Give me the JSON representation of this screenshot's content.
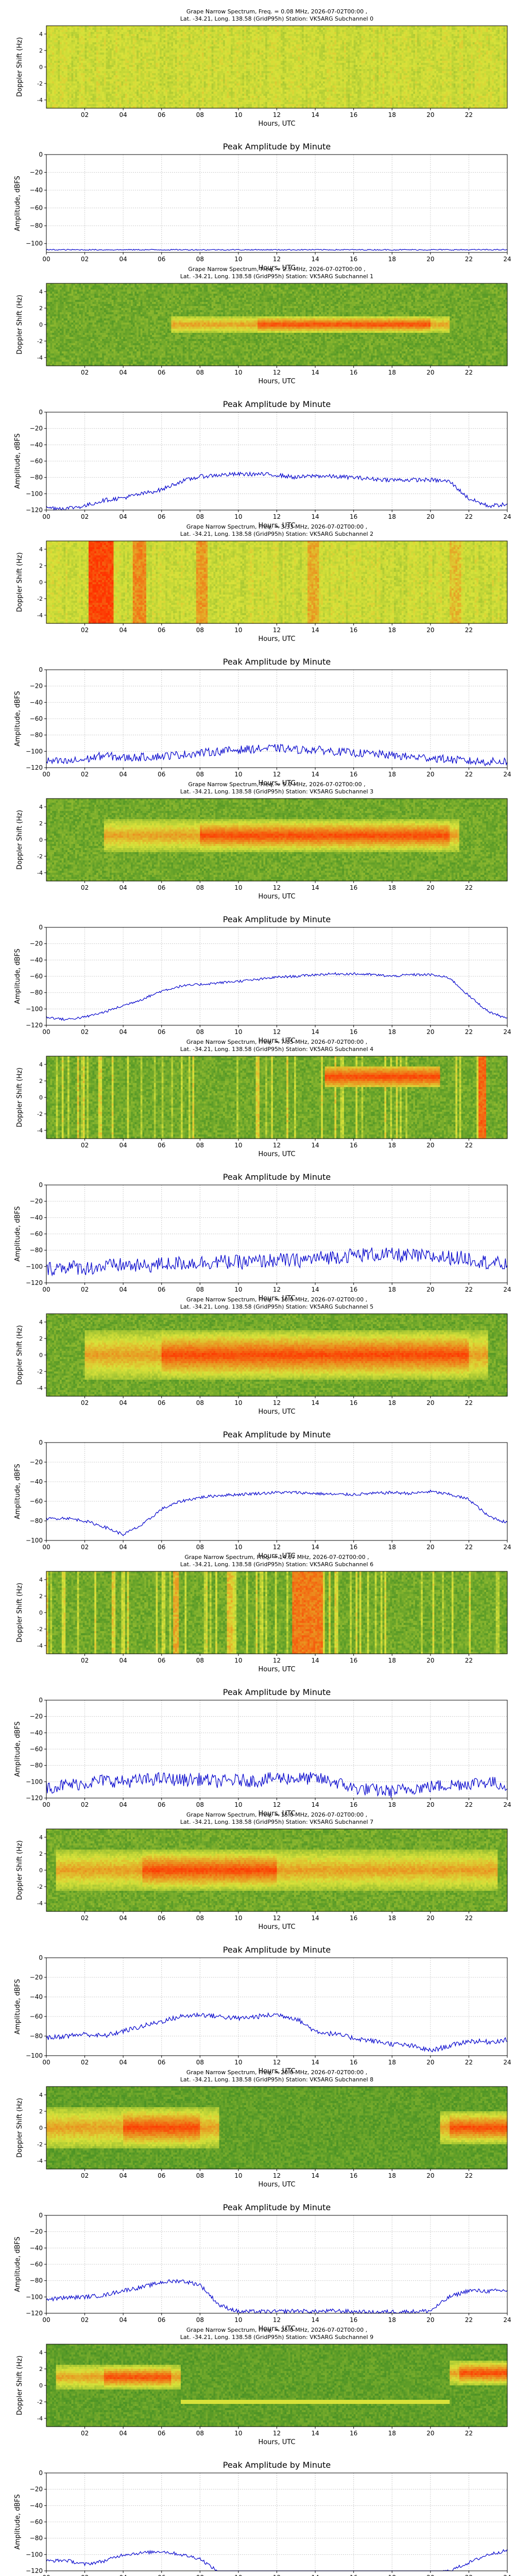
{
  "figure": {
    "spectrogram_title_lines": [
      "Grape Narrow Spectrum, Freq. = {f} MHz, 2026-07-02T00:00 ,",
      "Lat. -34.21, Long. 138.58 (GridP95h) Station: VK5ARG Subchannel {n}"
    ],
    "amplitude_title": "Peak Amplitude by Minute",
    "spectrogram_ylabel": "Doppler Shift (Hz)",
    "amplitude_ylabel": "Amplitude, dBFS",
    "xlabel": "Hours, UTC",
    "spectrogram_xticks": [
      "02",
      "04",
      "06",
      "08",
      "10",
      "12",
      "14",
      "16",
      "18",
      "20",
      "22"
    ],
    "amplitude_xticks": [
      "00",
      "02",
      "04",
      "06",
      "08",
      "10",
      "12",
      "14",
      "16",
      "18",
      "20",
      "22",
      "24"
    ],
    "spectrogram_yticks": [
      "4",
      "2",
      "0",
      "-2",
      "-4"
    ],
    "colors": {
      "line": "#0000cc",
      "grid": "#cccccc",
      "spec_low": "#1f7a1f",
      "spec_mid": "#d8e23a",
      "spec_high": "#ff3300"
    }
  },
  "chart_data": [
    {
      "type": "heatmap",
      "subchannel": 0,
      "freq_mhz": "0.08",
      "title": "Grape Narrow Spectrum, Freq. = 0.08 MHz, 2026-07-02T00:00 ,",
      "subtitle": "Lat. -34.21, Long. 138.58 (GridP95h) Station: VK5ARG Subchannel 0",
      "xlabel": "Hours, UTC",
      "ylabel": "Doppler Shift (Hz)",
      "xlim": [
        0,
        24
      ],
      "ylim": [
        -5,
        5
      ],
      "background": "noise-yellow",
      "events": []
    },
    {
      "type": "line",
      "subchannel": 0,
      "title": "Peak Amplitude by Minute",
      "xlabel": "Hours, UTC",
      "ylabel": "Amplitude, dBFS",
      "xlim": [
        0,
        24
      ],
      "ylim": [
        -110,
        0
      ],
      "yticks": [
        0,
        -20,
        -40,
        -60,
        -80,
        -100
      ],
      "x": [
        0,
        2,
        4,
        6,
        8,
        10,
        12,
        14,
        16,
        18,
        20,
        22,
        24
      ],
      "y": [
        -107,
        -107,
        -107,
        -107,
        -107,
        -107,
        -107,
        -107,
        -107,
        -107,
        -107,
        -107,
        -107
      ],
      "noise": 0.6
    },
    {
      "type": "heatmap",
      "subchannel": 1,
      "freq_mhz": "2.5",
      "title": "Grape Narrow Spectrum, Freq. = 2.5 MHz, 2026-07-02T00:00 ,",
      "subtitle": "Lat. -34.21, Long. 138.58 (GridP95h) Station: VK5ARG Subchannel 1",
      "xlabel": "Hours, UTC",
      "ylabel": "Doppler Shift (Hz)",
      "xlim": [
        0,
        24
      ],
      "ylim": [
        -5,
        5
      ],
      "background": "green",
      "events": [
        {
          "kind": "trace",
          "x0": 6.5,
          "x1": 21,
          "freq": 0,
          "width": 2.2,
          "peak_x0": 11,
          "peak_x1": 20
        }
      ]
    },
    {
      "type": "line",
      "subchannel": 1,
      "title": "Peak Amplitude by Minute",
      "xlabel": "Hours, UTC",
      "ylabel": "Amplitude, dBFS",
      "xlim": [
        0,
        24
      ],
      "ylim": [
        -120,
        0
      ],
      "yticks": [
        0,
        -20,
        -40,
        -60,
        -80,
        -100,
        -120
      ],
      "x": [
        0,
        1,
        2,
        3,
        4,
        5,
        6,
        7,
        8,
        9,
        10,
        11,
        12,
        13,
        14,
        15,
        16,
        17,
        18,
        19,
        20,
        21,
        22,
        23,
        24
      ],
      "y": [
        -117,
        -118,
        -115,
        -108,
        -105,
        -100,
        -95,
        -85,
        -79,
        -77,
        -76,
        -76,
        -77,
        -80,
        -78,
        -79,
        -80,
        -82,
        -83,
        -83,
        -83,
        -85,
        -106,
        -115,
        -113
      ],
      "noise": 2.5
    },
    {
      "type": "heatmap",
      "subchannel": 2,
      "freq_mhz": "3.33",
      "title": "Grape Narrow Spectrum, Freq. = 3.33 MHz, 2026-07-02T00:00 ,",
      "subtitle": "Lat. -34.21, Long. 138.58 (GridP95h) Station: VK5ARG Subchannel 2",
      "xlabel": "Hours, UTC",
      "ylabel": "Doppler Shift (Hz)",
      "xlim": [
        0,
        24
      ],
      "ylim": [
        -5,
        5
      ],
      "background": "noise-yellow",
      "events": [
        {
          "kind": "band",
          "x0": 2.2,
          "x1": 3.5,
          "level": 0.95
        },
        {
          "kind": "band",
          "x0": 4.5,
          "x1": 5.2,
          "level": 0.75
        },
        {
          "kind": "band",
          "x0": 7.8,
          "x1": 8.4,
          "level": 0.7
        },
        {
          "kind": "band",
          "x0": 13.6,
          "x1": 14.2,
          "level": 0.65
        },
        {
          "kind": "band",
          "x0": 21.0,
          "x1": 21.6,
          "level": 0.6
        }
      ]
    },
    {
      "type": "line",
      "subchannel": 2,
      "title": "Peak Amplitude by Minute",
      "xlabel": "Hours, UTC",
      "ylabel": "Amplitude, dBFS",
      "xlim": [
        0,
        24
      ],
      "ylim": [
        -120,
        0
      ],
      "yticks": [
        0,
        -20,
        -40,
        -60,
        -80,
        -100,
        -120
      ],
      "x": [
        0,
        1,
        2,
        3,
        4,
        5,
        6,
        7,
        8,
        9,
        10,
        11,
        12,
        13,
        14,
        15,
        16,
        17,
        18,
        19,
        20,
        21,
        22,
        23,
        24
      ],
      "y": [
        -112,
        -113,
        -110,
        -105,
        -108,
        -107,
        -106,
        -104,
        -102,
        -100,
        -98,
        -97,
        -96,
        -98,
        -98,
        -100,
        -102,
        -103,
        -105,
        -107,
        -108,
        -110,
        -112,
        -113,
        -112
      ],
      "noise": 5
    },
    {
      "type": "heatmap",
      "subchannel": 3,
      "freq_mhz": "5.0",
      "title": "Grape Narrow Spectrum, Freq. = 5.0 MHz, 2026-07-02T00:00 ,",
      "subtitle": "Lat. -34.21, Long. 138.58 (GridP95h) Station: VK5ARG Subchannel 3",
      "xlabel": "Hours, UTC",
      "ylabel": "Doppler Shift (Hz)",
      "xlim": [
        0,
        24
      ],
      "ylim": [
        -5,
        5
      ],
      "background": "green",
      "events": [
        {
          "kind": "trace",
          "x0": 3,
          "x1": 21.5,
          "freq": 0.5,
          "width": 4,
          "peak_x0": 8,
          "peak_x1": 21
        }
      ]
    },
    {
      "type": "line",
      "subchannel": 3,
      "title": "Peak Amplitude by Minute",
      "xlabel": "Hours, UTC",
      "ylabel": "Amplitude, dBFS",
      "xlim": [
        0,
        24
      ],
      "ylim": [
        -120,
        0
      ],
      "yticks": [
        0,
        -20,
        -40,
        -60,
        -80,
        -100,
        -120
      ],
      "x": [
        0,
        1,
        2,
        3,
        4,
        5,
        6,
        7,
        8,
        9,
        10,
        11,
        12,
        13,
        14,
        15,
        16,
        17,
        18,
        19,
        20,
        21,
        22,
        23,
        24
      ],
      "y": [
        -110,
        -113,
        -110,
        -104,
        -96,
        -88,
        -78,
        -72,
        -70,
        -68,
        -66,
        -64,
        -61,
        -60,
        -58,
        -57,
        -57,
        -58,
        -60,
        -58,
        -58,
        -62,
        -84,
        -103,
        -112
      ],
      "noise": 1.5
    },
    {
      "type": "heatmap",
      "subchannel": 4,
      "freq_mhz": "7.85",
      "title": "Grape Narrow Spectrum, Freq. = 7.85 MHz, 2026-07-02T00:00 ,",
      "subtitle": "Lat. -34.21, Long. 138.58 (GridP95h) Station: VK5ARG Subchannel 4",
      "xlabel": "Hours, UTC",
      "ylabel": "Doppler Shift (Hz)",
      "xlim": [
        0,
        24
      ],
      "ylim": [
        -5,
        5
      ],
      "background": "green-streaks",
      "events": [
        {
          "kind": "blob",
          "x0": 14.5,
          "x1": 20.5,
          "freq": 2.5,
          "width": 2.5
        },
        {
          "kind": "band",
          "x0": 22.5,
          "x1": 22.9,
          "level": 0.85
        }
      ]
    },
    {
      "type": "line",
      "subchannel": 4,
      "title": "Peak Amplitude by Minute",
      "xlabel": "Hours, UTC",
      "ylabel": "Amplitude, dBFS",
      "xlim": [
        0,
        24
      ],
      "ylim": [
        -120,
        0
      ],
      "yticks": [
        0,
        -20,
        -40,
        -60,
        -80,
        -100,
        -120
      ],
      "x": [
        0,
        1,
        2,
        3,
        4,
        5,
        6,
        7,
        8,
        9,
        10,
        11,
        12,
        13,
        14,
        15,
        16,
        17,
        18,
        19,
        20,
        21,
        22,
        23,
        24
      ],
      "y": [
        -103,
        -100,
        -102,
        -100,
        -98,
        -100,
        -97,
        -96,
        -95,
        -94,
        -95,
        -94,
        -92,
        -93,
        -90,
        -88,
        -86,
        -85,
        -86,
        -87,
        -88,
        -89,
        -90,
        -95,
        -98
      ],
      "noise": 9
    },
    {
      "type": "heatmap",
      "subchannel": 5,
      "freq_mhz": "10.0",
      "title": "Grape Narrow Spectrum, Freq. = 10.0 MHz, 2026-07-02T00:00 ,",
      "subtitle": "Lat. -34.21, Long. 138.58 (GridP95h) Station: VK5ARG Subchannel 5",
      "xlabel": "Hours, UTC",
      "ylabel": "Doppler Shift (Hz)",
      "xlim": [
        0,
        24
      ],
      "ylim": [
        -5,
        5
      ],
      "background": "green",
      "events": [
        {
          "kind": "trace",
          "x0": 2,
          "x1": 23,
          "freq": 0,
          "width": 6,
          "peak_x0": 6,
          "peak_x1": 22
        }
      ]
    },
    {
      "type": "line",
      "subchannel": 5,
      "title": "Peak Amplitude by Minute",
      "xlabel": "Hours, UTC",
      "ylabel": "Amplitude, dBFS",
      "xlim": [
        0,
        24
      ],
      "ylim": [
        -100,
        0
      ],
      "yticks": [
        0,
        -20,
        -40,
        -60,
        -80,
        -100
      ],
      "x": [
        0,
        1,
        2,
        3,
        4,
        5,
        6,
        7,
        8,
        9,
        10,
        11,
        12,
        13,
        14,
        15,
        16,
        17,
        18,
        19,
        20,
        21,
        22,
        23,
        24
      ],
      "y": [
        -78,
        -77,
        -80,
        -86,
        -94,
        -84,
        -68,
        -60,
        -56,
        -54,
        -53,
        -52,
        -51,
        -51,
        -52,
        -53,
        -53,
        -52,
        -51,
        -52,
        -50,
        -53,
        -58,
        -75,
        -82
      ],
      "noise": 1.5
    },
    {
      "type": "heatmap",
      "subchannel": 6,
      "freq_mhz": "14.67",
      "title": "Grape Narrow Spectrum, Freq. = 14.67 MHz, 2026-07-02T00:00 ,",
      "subtitle": "Lat. -34.21, Long. 138.58 (GridP95h) Station: VK5ARG Subchannel 6",
      "xlabel": "Hours, UTC",
      "ylabel": "Doppler Shift (Hz)",
      "xlim": [
        0,
        24
      ],
      "ylim": [
        -5,
        5
      ],
      "background": "green-streaks",
      "events": [
        {
          "kind": "band",
          "x0": 12.8,
          "x1": 14.4,
          "level": 0.8
        },
        {
          "kind": "band",
          "x0": 6.6,
          "x1": 6.9,
          "level": 0.65
        },
        {
          "kind": "band",
          "x0": 9.4,
          "x1": 9.7,
          "level": 0.6
        }
      ]
    },
    {
      "type": "line",
      "subchannel": 6,
      "title": "Peak Amplitude by Minute",
      "xlabel": "Hours, UTC",
      "ylabel": "Amplitude, dBFS",
      "xlim": [
        0,
        24
      ],
      "ylim": [
        -120,
        0
      ],
      "yticks": [
        0,
        -20,
        -40,
        -60,
        -80,
        -100,
        -120
      ],
      "x": [
        0,
        1,
        2,
        3,
        4,
        5,
        6,
        7,
        8,
        9,
        10,
        11,
        12,
        13,
        14,
        15,
        16,
        17,
        18,
        19,
        20,
        21,
        22,
        23,
        24
      ],
      "y": [
        -107,
        -104,
        -102,
        -98,
        -100,
        -98,
        -96,
        -98,
        -97,
        -100,
        -98,
        -99,
        -95,
        -96,
        -96,
        -100,
        -108,
        -110,
        -112,
        -108,
        -106,
        -104,
        -102,
        -100,
        -105
      ],
      "noise": 8
    },
    {
      "type": "heatmap",
      "subchannel": 7,
      "freq_mhz": "15.0",
      "title": "Grape Narrow Spectrum, Freq. = 15.0 MHz, 2026-07-02T00:00 ,",
      "subtitle": "Lat. -34.21, Long. 138.58 (GridP95h) Station: VK5ARG Subchannel 7",
      "xlabel": "Hours, UTC",
      "ylabel": "Doppler Shift (Hz)",
      "xlim": [
        0,
        24
      ],
      "ylim": [
        -5,
        5
      ],
      "background": "green",
      "events": [
        {
          "kind": "trace",
          "x0": 0.5,
          "x1": 23.5,
          "freq": 0,
          "width": 5,
          "peak_x0": 5,
          "peak_x1": 12
        }
      ]
    },
    {
      "type": "line",
      "subchannel": 7,
      "title": "Peak Amplitude by Minute",
      "xlabel": "Hours, UTC",
      "ylabel": "Amplitude, dBFS",
      "xlim": [
        0,
        24
      ],
      "ylim": [
        -100,
        0
      ],
      "yticks": [
        0,
        -20,
        -40,
        -60,
        -80,
        -100
      ],
      "x": [
        0,
        1,
        2,
        3,
        4,
        5,
        6,
        7,
        8,
        9,
        10,
        11,
        12,
        13,
        14,
        15,
        16,
        17,
        18,
        19,
        20,
        21,
        22,
        23,
        24
      ],
      "y": [
        -82,
        -80,
        -78,
        -80,
        -75,
        -70,
        -65,
        -60,
        -58,
        -60,
        -62,
        -60,
        -58,
        -62,
        -75,
        -78,
        -82,
        -85,
        -88,
        -90,
        -95,
        -90,
        -85,
        -86,
        -84
      ],
      "noise": 2.5
    },
    {
      "type": "heatmap",
      "subchannel": 8,
      "freq_mhz": "20.0",
      "title": "Grape Narrow Spectrum, Freq. = 20.0 MHz, 2026-07-02T00:00 ,",
      "subtitle": "Lat. -34.21, Long. 138.58 (GridP95h) Station: VK5ARG Subchannel 8",
      "xlabel": "Hours, UTC",
      "ylabel": "Doppler Shift (Hz)",
      "xlim": [
        0,
        24
      ],
      "ylim": [
        -5,
        5
      ],
      "background": "green-faint",
      "events": [
        {
          "kind": "trace",
          "x0": 0,
          "x1": 9,
          "freq": 0,
          "width": 5,
          "peak_x0": 4,
          "peak_x1": 8
        },
        {
          "kind": "trace",
          "x0": 20.5,
          "x1": 24,
          "freq": 0,
          "width": 4,
          "peak_x0": 21,
          "peak_x1": 24
        }
      ]
    },
    {
      "type": "line",
      "subchannel": 8,
      "title": "Peak Amplitude by Minute",
      "xlabel": "Hours, UTC",
      "ylabel": "Amplitude, dBFS",
      "xlim": [
        0,
        24
      ],
      "ylim": [
        -120,
        0
      ],
      "yticks": [
        0,
        -20,
        -40,
        -60,
        -80,
        -100,
        -120
      ],
      "x": [
        0,
        1,
        2,
        3,
        4,
        5,
        6,
        7,
        8,
        9,
        10,
        11,
        12,
        13,
        14,
        15,
        16,
        17,
        18,
        19,
        20,
        21,
        22,
        23,
        24
      ],
      "y": [
        -103,
        -101,
        -100,
        -98,
        -92,
        -88,
        -82,
        -80,
        -85,
        -110,
        -118,
        -118,
        -118,
        -117,
        -118,
        -117,
        -118,
        -119,
        -118,
        -118,
        -117,
        -100,
        -92,
        -93,
        -92
      ],
      "noise": 2.5
    },
    {
      "type": "heatmap",
      "subchannel": 9,
      "freq_mhz": "25.0",
      "title": "Grape Narrow Spectrum, Freq. = 25.0 MHz, 2026-07-02T00:00 ,",
      "subtitle": "Lat. -34.21, Long. 138.58 (GridP95h) Station: VK5ARG Subchannel 9",
      "xlabel": "Hours, UTC",
      "ylabel": "Doppler Shift (Hz)",
      "xlim": [
        0,
        24
      ],
      "ylim": [
        -5,
        5
      ],
      "background": "green-faint",
      "events": [
        {
          "kind": "trace",
          "x0": 0.5,
          "x1": 7,
          "freq": 1,
          "width": 3,
          "peak_x0": 3,
          "peak_x1": 6.5
        },
        {
          "kind": "trace",
          "x0": 21,
          "x1": 24,
          "freq": 1.5,
          "width": 3,
          "peak_x0": 21.5,
          "peak_x1": 24
        },
        {
          "kind": "line",
          "x0": 7,
          "x1": 21,
          "freq": -2
        }
      ]
    },
    {
      "type": "line",
      "subchannel": 9,
      "title": "Peak Amplitude by Minute",
      "xlabel": "Hours, UTC",
      "ylabel": "Amplitude, dBFS",
      "xlim": [
        0,
        24
      ],
      "ylim": [
        -120,
        0
      ],
      "yticks": [
        0,
        -20,
        -40,
        -60,
        -80,
        -100,
        -120
      ],
      "x": [
        0,
        1,
        2,
        3,
        4,
        5,
        6,
        7,
        8,
        9,
        10,
        11,
        12,
        13,
        14,
        15,
        16,
        17,
        18,
        19,
        20,
        21,
        22,
        23,
        24
      ],
      "y": [
        -108,
        -107,
        -112,
        -108,
        -100,
        -98,
        -96,
        -100,
        -105,
        -122,
        -123,
        -123,
        -123,
        -123,
        -123,
        -123,
        -123,
        -123,
        -123,
        -123,
        -123,
        -120,
        -110,
        -100,
        -95
      ],
      "noise": 2
    }
  ]
}
